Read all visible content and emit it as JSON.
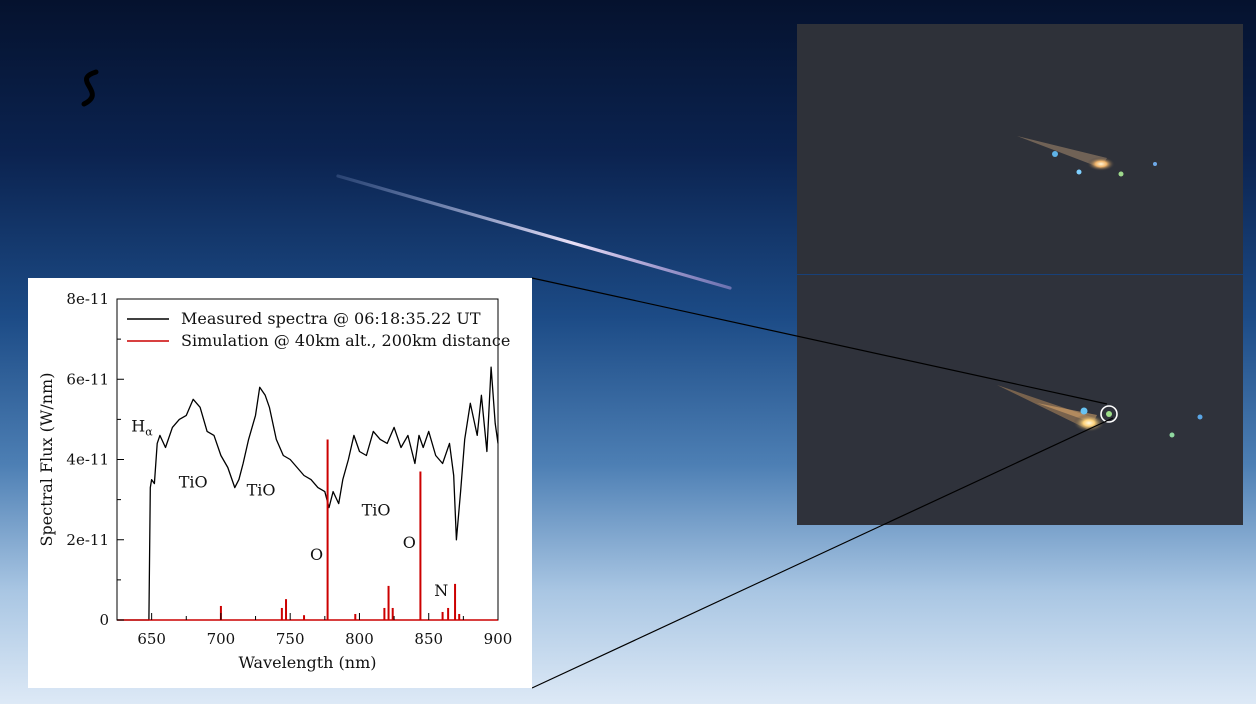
{
  "chart_data": {
    "type": "line",
    "xlabel": "Wavelength (nm)",
    "ylabel": "Spectral Flux (W/nm)",
    "xlim": [
      625,
      900
    ],
    "ylim": [
      0,
      8e-11
    ],
    "x_ticks": [
      650,
      700,
      750,
      800,
      850,
      900
    ],
    "x_tick_labels": [
      "650",
      "700",
      "750",
      "800",
      "850",
      "900"
    ],
    "y_ticks": [
      0,
      2e-11,
      4e-11,
      6e-11,
      8e-11
    ],
    "y_tick_labels": [
      "0",
      "2e-11",
      "4e-11",
      "6e-11",
      "8e-11"
    ],
    "legend_position": "top",
    "series": [
      {
        "name": "Measured spectra @ 06:18:35.22 UT",
        "color": "#000000",
        "x": [
          625,
          648,
          649,
          650,
          652,
          654,
          656,
          660,
          665,
          670,
          675,
          680,
          685,
          690,
          695,
          700,
          705,
          710,
          713,
          716,
          720,
          725,
          728,
          732,
          735,
          740,
          745,
          750,
          755,
          760,
          765,
          770,
          775,
          778,
          781,
          785,
          788,
          792,
          796,
          800,
          805,
          810,
          815,
          820,
          825,
          830,
          835,
          840,
          843,
          846,
          850,
          855,
          860,
          865,
          868,
          870,
          873,
          876,
          880,
          885,
          888,
          892,
          895,
          898,
          900
        ],
        "y": [
          0,
          0,
          3.3e-11,
          3.5e-11,
          3.4e-11,
          4.4e-11,
          4.6e-11,
          4.3e-11,
          4.8e-11,
          5e-11,
          5.1e-11,
          5.5e-11,
          5.3e-11,
          4.7e-11,
          4.6e-11,
          4.1e-11,
          3.8e-11,
          3.3e-11,
          3.5e-11,
          3.9e-11,
          4.5e-11,
          5.1e-11,
          5.8e-11,
          5.6e-11,
          5.3e-11,
          4.5e-11,
          4.1e-11,
          4e-11,
          3.8e-11,
          3.6e-11,
          3.5e-11,
          3.3e-11,
          3.2e-11,
          2.8e-11,
          3.2e-11,
          2.9e-11,
          3.5e-11,
          4e-11,
          4.6e-11,
          4.2e-11,
          4.1e-11,
          4.7e-11,
          4.5e-11,
          4.4e-11,
          4.8e-11,
          4.3e-11,
          4.6e-11,
          3.9e-11,
          4.6e-11,
          4.3e-11,
          4.7e-11,
          4.1e-11,
          3.9e-11,
          4.4e-11,
          3.6e-11,
          2e-11,
          3.2e-11,
          4.5e-11,
          5.4e-11,
          4.6e-11,
          5.6e-11,
          4.2e-11,
          6.3e-11,
          4.9e-11,
          4.4e-11
        ]
      },
      {
        "name": "Simulation @ 40km alt., 200km distance",
        "color": "#cc0000",
        "x": [
          700,
          744,
          747,
          760,
          777,
          797,
          818,
          821,
          824,
          844,
          860,
          864,
          869,
          872
        ],
        "y": [
          3.5e-12,
          3e-12,
          5.2e-12,
          1.2e-12,
          4.5e-11,
          1.5e-12,
          3e-12,
          8.5e-12,
          3e-12,
          3.7e-11,
          2e-12,
          3e-12,
          9e-12,
          1.5e-12
        ]
      }
    ],
    "annotations": [
      {
        "text": "TiO",
        "x": 680,
        "y": 3.3e-11
      },
      {
        "text": "TiO",
        "x": 729,
        "y": 3.1e-11
      },
      {
        "text": "TiO",
        "x": 812,
        "y": 2.6e-11
      },
      {
        "text": "O",
        "x": 769,
        "y": 1.5e-11
      },
      {
        "text": "O",
        "x": 836,
        "y": 1.8e-11
      },
      {
        "text": "N",
        "x": 859,
        "y": 6e-12
      }
    ],
    "halpha": {
      "base": "H",
      "sub": "α",
      "x": 643,
      "y": 4.7e-11
    }
  }
}
